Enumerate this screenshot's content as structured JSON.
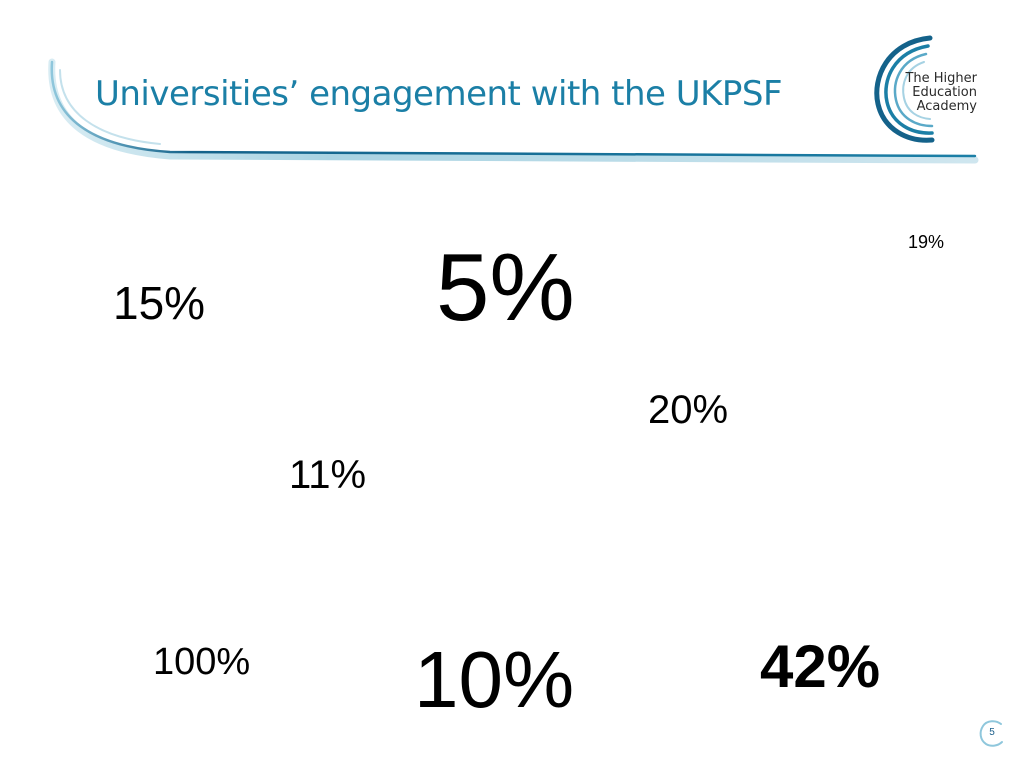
{
  "slide": {
    "title": "Universities’ engagement with the UKPSF",
    "logo": {
      "line1": "The Higher",
      "line2": "Education",
      "line3": "Academy"
    },
    "stats": {
      "s15": "15%",
      "s5": "5%",
      "s19": "19%",
      "s20": "20%",
      "s11": "11%",
      "s100": "100%",
      "s10": "10%",
      "s42": "42%"
    },
    "page_number": "5"
  },
  "colors": {
    "title": "#1b7fa6",
    "swoosh_dark": "#14628a",
    "swoosh_light": "#8fc7dc",
    "text": "#000000"
  }
}
